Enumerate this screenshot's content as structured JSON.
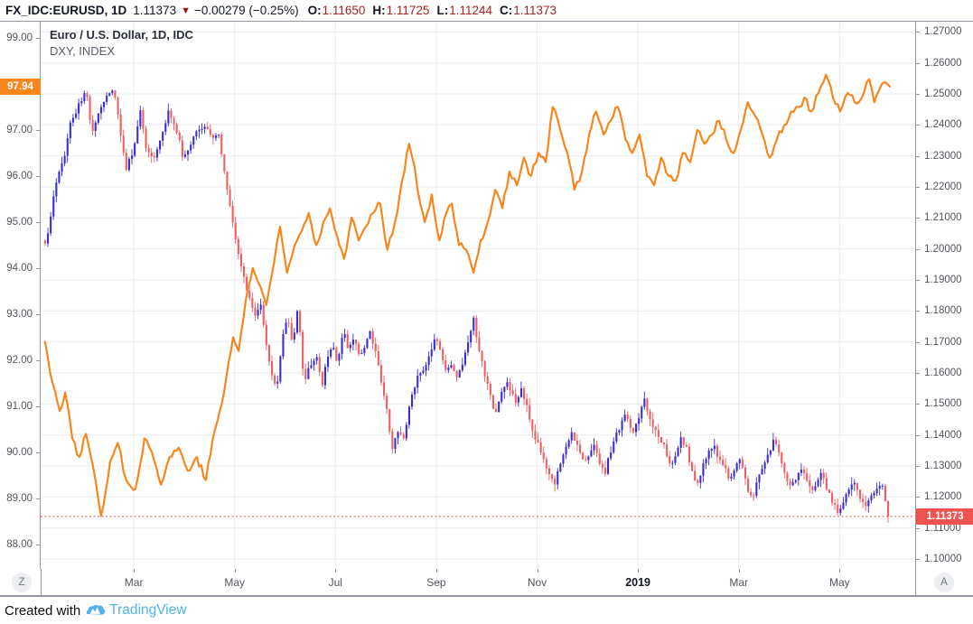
{
  "header": {
    "symbol": "FX_IDC:EURUSD, 1D",
    "price": "1.11373",
    "direction_icon": "▼",
    "change": "−0.00279 (−0.25%)",
    "ohlc": [
      {
        "label": "O:",
        "value": "1.11650"
      },
      {
        "label": "H:",
        "value": "1.11725"
      },
      {
        "label": "L:",
        "value": "1.11244"
      },
      {
        "label": "C:",
        "value": "1.11373"
      }
    ]
  },
  "legend": {
    "line1": "Euro / U.S. Dollar, 1D, IDC",
    "line2": "DXY, INDEX"
  },
  "left_axis": {
    "labels": [
      "99.00",
      "97.00",
      "96.00",
      "95.00",
      "94.00",
      "93.00",
      "92.00",
      "91.00",
      "90.00",
      "89.00",
      "88.00"
    ],
    "badge": "97.94",
    "range": [
      87.47,
      99.35
    ]
  },
  "right_axis": {
    "labels": [
      "1.27000",
      "1.26000",
      "1.25000",
      "1.24000",
      "1.23000",
      "1.22000",
      "1.21000",
      "1.20000",
      "1.19000",
      "1.18000",
      "1.17000",
      "1.16000",
      "1.15000",
      "1.14000",
      "1.13000",
      "1.12000",
      "1.11000",
      "1.10000"
    ],
    "badge": "1.11373",
    "range": [
      1.0968,
      1.2733
    ]
  },
  "time_axis": {
    "t_range": [
      0.152,
      17.5
    ],
    "labels": [
      {
        "text": "Mar",
        "t": 2,
        "year": false
      },
      {
        "text": "May",
        "t": 4,
        "year": false
      },
      {
        "text": "Jul",
        "t": 6,
        "year": false
      },
      {
        "text": "Sep",
        "t": 8,
        "year": false
      },
      {
        "text": "Nov",
        "t": 10,
        "year": false
      },
      {
        "text": "2019",
        "t": 12,
        "year": true
      },
      {
        "text": "Mar",
        "t": 14,
        "year": false
      },
      {
        "text": "May",
        "t": 16,
        "year": false
      }
    ],
    "zoom_button": "Z",
    "auto_button": "A"
  },
  "footer": {
    "created_with": "Created with",
    "brand": "TradingView"
  },
  "colors": {
    "up": "#3a2cd9",
    "down": "#ef5f5f",
    "dxy_line": "#f8861d",
    "left_badge_bg": "#f8861d",
    "right_badge_bg": "#ef5350",
    "price_line": "#ef5350",
    "grid": "#e9ebf0",
    "axis_border": "#9196a1",
    "ohlc_value": "#a32222",
    "brand_blue": "#51b2e9"
  },
  "chart_data": {
    "type": "candlestick+line",
    "title": "Euro / U.S. Dollar, 1D, IDC",
    "x_unit": "months since 2018-01-01 (t)",
    "grid": {
      "h_values_axis": "right",
      "h_step": 0.01,
      "v_at_labeled_ticks": true
    },
    "last_price": 1.11373,
    "series": [
      {
        "name": "EURUSD candles",
        "type": "candlestick",
        "axis": "right",
        "close_anchors": [
          [
            0.24,
            1.201
          ],
          [
            0.33,
            1.208
          ],
          [
            0.46,
            1.222
          ],
          [
            0.6,
            1.228
          ],
          [
            0.74,
            1.24
          ],
          [
            0.89,
            1.246
          ],
          [
            1.05,
            1.251
          ],
          [
            1.17,
            1.238
          ],
          [
            1.32,
            1.245
          ],
          [
            1.46,
            1.25
          ],
          [
            1.59,
            1.252
          ],
          [
            1.71,
            1.24
          ],
          [
            1.85,
            1.226
          ],
          [
            2.0,
            1.232
          ],
          [
            2.12,
            1.245
          ],
          [
            2.25,
            1.232
          ],
          [
            2.39,
            1.228
          ],
          [
            2.54,
            1.236
          ],
          [
            2.68,
            1.244
          ],
          [
            2.82,
            1.24
          ],
          [
            2.97,
            1.23
          ],
          [
            3.11,
            1.233
          ],
          [
            3.25,
            1.238
          ],
          [
            3.4,
            1.24
          ],
          [
            3.54,
            1.236
          ],
          [
            3.68,
            1.238
          ],
          [
            3.83,
            1.221
          ],
          [
            3.97,
            1.208
          ],
          [
            4.11,
            1.196
          ],
          [
            4.26,
            1.186
          ],
          [
            4.4,
            1.178
          ],
          [
            4.51,
            1.183
          ],
          [
            4.61,
            1.17
          ],
          [
            4.72,
            1.161
          ],
          [
            4.83,
            1.154
          ],
          [
            4.94,
            1.17
          ],
          [
            5.04,
            1.178
          ],
          [
            5.15,
            1.169
          ],
          [
            5.26,
            1.182
          ],
          [
            5.37,
            1.157
          ],
          [
            5.47,
            1.162
          ],
          [
            5.62,
            1.166
          ],
          [
            5.73,
            1.156
          ],
          [
            5.83,
            1.164
          ],
          [
            5.94,
            1.169
          ],
          [
            6.05,
            1.163
          ],
          [
            6.16,
            1.174
          ],
          [
            6.26,
            1.167
          ],
          [
            6.37,
            1.172
          ],
          [
            6.48,
            1.164
          ],
          [
            6.59,
            1.169
          ],
          [
            6.69,
            1.173
          ],
          [
            6.8,
            1.166
          ],
          [
            6.91,
            1.157
          ],
          [
            7.02,
            1.148
          ],
          [
            7.12,
            1.134
          ],
          [
            7.23,
            1.142
          ],
          [
            7.34,
            1.138
          ],
          [
            7.45,
            1.148
          ],
          [
            7.55,
            1.155
          ],
          [
            7.66,
            1.16
          ],
          [
            7.77,
            1.162
          ],
          [
            7.88,
            1.167
          ],
          [
            7.98,
            1.172
          ],
          [
            8.09,
            1.167
          ],
          [
            8.2,
            1.16
          ],
          [
            8.31,
            1.163
          ],
          [
            8.41,
            1.158
          ],
          [
            8.52,
            1.163
          ],
          [
            8.63,
            1.17
          ],
          [
            8.74,
            1.177
          ],
          [
            8.84,
            1.168
          ],
          [
            8.95,
            1.16
          ],
          [
            9.06,
            1.153
          ],
          [
            9.17,
            1.147
          ],
          [
            9.27,
            1.152
          ],
          [
            9.38,
            1.157
          ],
          [
            9.49,
            1.154
          ],
          [
            9.6,
            1.15
          ],
          [
            9.7,
            1.155
          ],
          [
            9.81,
            1.148
          ],
          [
            9.92,
            1.14
          ],
          [
            10.03,
            1.137
          ],
          [
            10.13,
            1.132
          ],
          [
            10.24,
            1.128
          ],
          [
            10.35,
            1.124
          ],
          [
            10.46,
            1.131
          ],
          [
            10.56,
            1.136
          ],
          [
            10.67,
            1.141
          ],
          [
            10.81,
            1.136
          ],
          [
            10.92,
            1.132
          ],
          [
            11.03,
            1.134
          ],
          [
            11.14,
            1.138
          ],
          [
            11.24,
            1.131
          ],
          [
            11.35,
            1.128
          ],
          [
            11.46,
            1.135
          ],
          [
            11.57,
            1.14
          ],
          [
            11.68,
            1.144
          ],
          [
            11.78,
            1.147
          ],
          [
            11.89,
            1.14
          ],
          [
            12.0,
            1.145
          ],
          [
            12.11,
            1.152
          ],
          [
            12.21,
            1.147
          ],
          [
            12.32,
            1.142
          ],
          [
            12.43,
            1.139
          ],
          [
            12.53,
            1.136
          ],
          [
            12.64,
            1.13
          ],
          [
            12.75,
            1.134
          ],
          [
            12.86,
            1.139
          ],
          [
            12.96,
            1.136
          ],
          [
            13.07,
            1.128
          ],
          [
            13.18,
            1.124
          ],
          [
            13.29,
            1.13
          ],
          [
            13.4,
            1.134
          ],
          [
            13.5,
            1.137
          ],
          [
            13.61,
            1.132
          ],
          [
            13.72,
            1.13
          ],
          [
            13.83,
            1.125
          ],
          [
            13.93,
            1.13
          ],
          [
            14.04,
            1.133
          ],
          [
            14.15,
            1.124
          ],
          [
            14.26,
            1.119
          ],
          [
            14.36,
            1.125
          ],
          [
            14.47,
            1.13
          ],
          [
            14.58,
            1.133
          ],
          [
            14.69,
            1.138
          ],
          [
            14.79,
            1.135
          ],
          [
            14.9,
            1.128
          ],
          [
            15.01,
            1.123
          ],
          [
            15.12,
            1.125
          ],
          [
            15.22,
            1.129
          ],
          [
            15.33,
            1.126
          ],
          [
            15.44,
            1.122
          ],
          [
            15.55,
            1.125
          ],
          [
            15.65,
            1.128
          ],
          [
            15.76,
            1.122
          ],
          [
            15.87,
            1.118
          ],
          [
            15.98,
            1.115
          ],
          [
            16.08,
            1.119
          ],
          [
            16.19,
            1.122
          ],
          [
            16.3,
            1.125
          ],
          [
            16.41,
            1.12
          ],
          [
            16.51,
            1.117
          ],
          [
            16.62,
            1.12
          ],
          [
            16.73,
            1.122
          ],
          [
            16.84,
            1.125
          ],
          [
            16.91,
            1.118
          ],
          [
            17.0,
            1.11373
          ]
        ]
      },
      {
        "name": "DXY, INDEX",
        "type": "line",
        "axis": "left",
        "points": [
          [
            0.24,
            92.4
          ],
          [
            0.39,
            91.5
          ],
          [
            0.53,
            90.9
          ],
          [
            0.64,
            91.3
          ],
          [
            0.78,
            90.3
          ],
          [
            0.92,
            89.9
          ],
          [
            1.05,
            90.4
          ],
          [
            1.19,
            89.7
          ],
          [
            1.35,
            88.62
          ],
          [
            1.53,
            89.8
          ],
          [
            1.68,
            90.2
          ],
          [
            1.85,
            89.4
          ],
          [
            2.03,
            89.2
          ],
          [
            2.21,
            90.3
          ],
          [
            2.36,
            90.0
          ],
          [
            2.54,
            89.3
          ],
          [
            2.71,
            89.9
          ],
          [
            2.89,
            90.1
          ],
          [
            3.07,
            89.6
          ],
          [
            3.25,
            89.9
          ],
          [
            3.43,
            89.4
          ],
          [
            3.61,
            90.5
          ],
          [
            3.79,
            91.3
          ],
          [
            3.97,
            92.5
          ],
          [
            4.08,
            92.2
          ],
          [
            4.22,
            93.3
          ],
          [
            4.36,
            94.0
          ],
          [
            4.51,
            93.6
          ],
          [
            4.63,
            93.2
          ],
          [
            4.78,
            94.1
          ],
          [
            4.9,
            94.9
          ],
          [
            5.04,
            93.9
          ],
          [
            5.19,
            94.5
          ],
          [
            5.33,
            94.8
          ],
          [
            5.47,
            95.2
          ],
          [
            5.62,
            94.5
          ],
          [
            5.76,
            95.0
          ],
          [
            5.89,
            95.3
          ],
          [
            6.03,
            94.7
          ],
          [
            6.17,
            94.2
          ],
          [
            6.32,
            95.1
          ],
          [
            6.46,
            94.6
          ],
          [
            6.6,
            94.9
          ],
          [
            6.75,
            95.2
          ],
          [
            6.89,
            95.4
          ],
          [
            7.03,
            94.4
          ],
          [
            7.18,
            95.0
          ],
          [
            7.32,
            95.9
          ],
          [
            7.46,
            96.7
          ],
          [
            7.57,
            96.2
          ],
          [
            7.68,
            95.4
          ],
          [
            7.77,
            95.0
          ],
          [
            7.91,
            95.6
          ],
          [
            8.06,
            94.6
          ],
          [
            8.2,
            95.2
          ],
          [
            8.31,
            95.4
          ],
          [
            8.45,
            94.5
          ],
          [
            8.59,
            94.4
          ],
          [
            8.74,
            93.9
          ],
          [
            8.88,
            94.6
          ],
          [
            9.02,
            95.0
          ],
          [
            9.17,
            95.7
          ],
          [
            9.31,
            95.3
          ],
          [
            9.45,
            96.1
          ],
          [
            9.6,
            95.8
          ],
          [
            9.74,
            96.4
          ],
          [
            9.88,
            96.0
          ],
          [
            10.03,
            96.5
          ],
          [
            10.17,
            96.3
          ],
          [
            10.31,
            97.5
          ],
          [
            10.46,
            97.0
          ],
          [
            10.6,
            96.5
          ],
          [
            10.74,
            95.7
          ],
          [
            10.89,
            96.1
          ],
          [
            11.03,
            96.9
          ],
          [
            11.17,
            97.4
          ],
          [
            11.32,
            96.9
          ],
          [
            11.46,
            97.2
          ],
          [
            11.6,
            97.5
          ],
          [
            11.75,
            96.8
          ],
          [
            11.89,
            96.5
          ],
          [
            12.03,
            96.9
          ],
          [
            12.18,
            96.0
          ],
          [
            12.32,
            95.8
          ],
          [
            12.46,
            96.4
          ],
          [
            12.61,
            96.0
          ],
          [
            12.75,
            95.9
          ],
          [
            12.89,
            96.5
          ],
          [
            13.04,
            96.3
          ],
          [
            13.18,
            97.0
          ],
          [
            13.32,
            96.7
          ],
          [
            13.47,
            96.9
          ],
          [
            13.61,
            97.2
          ],
          [
            13.75,
            96.8
          ],
          [
            13.9,
            96.5
          ],
          [
            14.04,
            97.0
          ],
          [
            14.18,
            97.6
          ],
          [
            14.33,
            97.3
          ],
          [
            14.47,
            96.9
          ],
          [
            14.61,
            96.4
          ],
          [
            14.76,
            96.8
          ],
          [
            14.9,
            97.1
          ],
          [
            15.04,
            97.4
          ],
          [
            15.19,
            97.5
          ],
          [
            15.3,
            97.7
          ],
          [
            15.44,
            97.4
          ],
          [
            15.58,
            97.8
          ],
          [
            15.73,
            98.2
          ],
          [
            15.87,
            97.7
          ],
          [
            16.01,
            97.4
          ],
          [
            16.16,
            97.8
          ],
          [
            16.3,
            97.6
          ],
          [
            16.44,
            97.7
          ],
          [
            16.59,
            98.1
          ],
          [
            16.69,
            97.6
          ],
          [
            16.84,
            98.0
          ],
          [
            17.0,
            97.94
          ]
        ]
      }
    ]
  }
}
